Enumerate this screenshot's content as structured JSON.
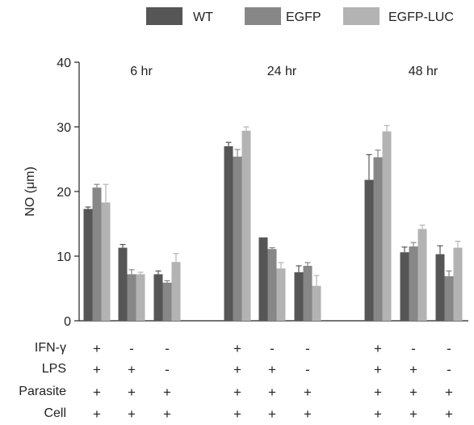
{
  "chart_data": {
    "type": "bar",
    "ylabel": "NO (μm)",
    "ylim": [
      0,
      40
    ],
    "yticks": [
      0,
      10,
      20,
      30,
      40
    ],
    "legend": {
      "position": "top",
      "entries": [
        {
          "name": "WT",
          "color": "#565656"
        },
        {
          "name": "EGFP",
          "color": "#878787"
        },
        {
          "name": "EGFP-LUC",
          "color": "#b3b3b3"
        }
      ]
    },
    "groups": [
      {
        "label": "6 hr",
        "conditions": [
          {
            "values": [
              17.3,
              20.6,
              18.3
            ],
            "errors": [
              0.3,
              0.5,
              2.8
            ]
          },
          {
            "values": [
              11.3,
              7.2,
              7.2
            ],
            "errors": [
              0.5,
              0.7,
              0.3
            ]
          },
          {
            "values": [
              7.2,
              5.9,
              9.1
            ],
            "errors": [
              0.5,
              0.3,
              1.3
            ]
          }
        ]
      },
      {
        "label": "24 hr",
        "conditions": [
          {
            "values": [
              27.0,
              25.4,
              29.4
            ],
            "errors": [
              0.6,
              1.1,
              0.6
            ]
          },
          {
            "values": [
              12.9,
              11.1,
              8.1
            ],
            "errors": [
              0.0,
              0.2,
              0.9
            ]
          },
          {
            "values": [
              7.5,
              8.5,
              5.4
            ],
            "errors": [
              1.0,
              0.5,
              1.6
            ]
          }
        ]
      },
      {
        "label": "48 hr",
        "conditions": [
          {
            "values": [
              21.8,
              25.3,
              29.3
            ],
            "errors": [
              3.9,
              1.1,
              0.9
            ]
          },
          {
            "values": [
              10.6,
              11.5,
              14.2
            ],
            "errors": [
              0.8,
              0.6,
              0.6
            ]
          },
          {
            "values": [
              10.3,
              6.9,
              11.3
            ],
            "errors": [
              1.3,
              0.8,
              1.0
            ]
          }
        ]
      }
    ],
    "condition_table": {
      "rows": [
        {
          "label": "IFN-γ",
          "signs": [
            "+",
            "-",
            "-",
            "+",
            "-",
            "-",
            "+",
            "-",
            "-"
          ]
        },
        {
          "label": "LPS",
          "signs": [
            "+",
            "+",
            "-",
            "+",
            "+",
            "-",
            "+",
            "+",
            "-"
          ]
        },
        {
          "label": "Parasite",
          "signs": [
            "+",
            "+",
            "+",
            "+",
            "+",
            "+",
            "+",
            "+",
            "+"
          ]
        },
        {
          "label": "Cell",
          "signs": [
            "+",
            "+",
            "+",
            "+",
            "+",
            "+",
            "+",
            "+",
            "+"
          ]
        }
      ]
    }
  }
}
